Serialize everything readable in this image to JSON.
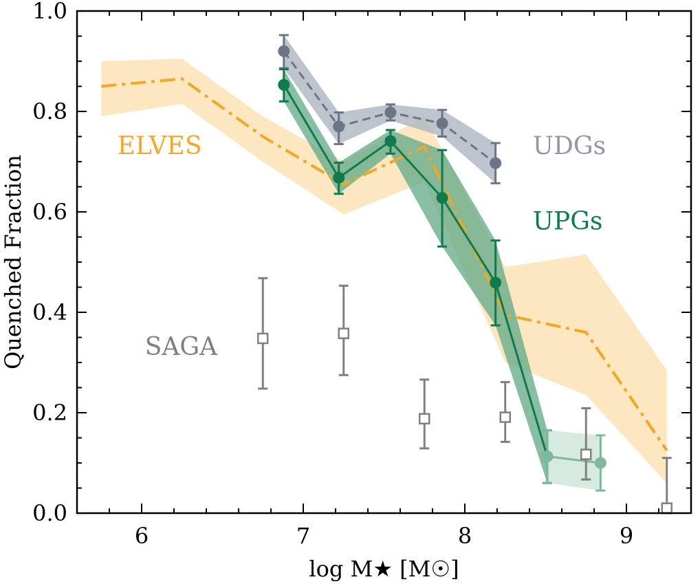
{
  "chart_data": {
    "type": "line",
    "xlabel": "log  M★ [M☉]",
    "ylabel": "Quenched Fraction",
    "xlim": [
      5.6,
      9.4
    ],
    "ylim": [
      0.0,
      1.0
    ],
    "xticks": [
      6,
      7,
      8,
      9
    ],
    "yticks": [
      0.0,
      0.2,
      0.4,
      0.6,
      0.8,
      1.0
    ],
    "xtick_labels": [
      "6",
      "7",
      "8",
      "9"
    ],
    "ytick_labels": [
      "0.0",
      "0.2",
      "0.4",
      "0.6",
      "0.8",
      "1.0"
    ],
    "grid": false,
    "annotations": [
      {
        "text": "ELVES",
        "color": "#f5a623"
      },
      {
        "text": "UDGs",
        "color": "#8f98a8"
      },
      {
        "text": "UPGs",
        "color": "#0f7a4e"
      },
      {
        "text": "SAGA",
        "color": "#7f7f7f"
      }
    ],
    "series": [
      {
        "name": "ELVES",
        "style": "dashdot-line-with-band",
        "color": "#f5a623",
        "band_color": "#fde6be",
        "x": [
          5.75,
          6.25,
          6.75,
          7.25,
          7.75,
          8.25,
          8.75,
          9.25
        ],
        "y": [
          0.85,
          0.865,
          0.75,
          0.655,
          0.73,
          0.395,
          0.36,
          0.125
        ],
        "band_low": [
          0.79,
          0.815,
          0.7,
          0.595,
          0.66,
          0.3,
          0.235,
          0.06
        ],
        "band_high": [
          0.9,
          0.905,
          0.79,
          0.7,
          0.79,
          0.49,
          0.515,
          0.285
        ]
      },
      {
        "name": "UDGs",
        "style": "dashed-line-markers-band",
        "color": "#6c7585",
        "band_color": "#aeb5c0",
        "x": [
          6.88,
          7.22,
          7.54,
          7.86,
          8.19
        ],
        "y": [
          0.92,
          0.77,
          0.798,
          0.776,
          0.697
        ],
        "err_low": [
          0.034,
          0.035,
          0.016,
          0.026,
          0.04
        ],
        "err_high": [
          0.032,
          0.028,
          0.016,
          0.027,
          0.04
        ]
      },
      {
        "name": "UPGs",
        "style": "solid-line-markers-band",
        "color": "#0f7a4e",
        "band_color": "#5fa886",
        "x": [
          6.88,
          7.22,
          7.54,
          7.86,
          8.19,
          8.51
        ],
        "y": [
          0.853,
          0.668,
          0.741,
          0.628,
          0.459,
          0.113
        ],
        "err_low": [
          0.033,
          0.032,
          0.025,
          0.097,
          0.085,
          0.053
        ],
        "err_high": [
          0.031,
          0.03,
          0.022,
          0.095,
          0.084,
          0.052
        ]
      },
      {
        "name": "UPGs (faded)",
        "style": "solid-line-markers-band",
        "color": "#7fb89c",
        "band_color": "#cde5d8",
        "x": [
          8.51,
          8.84
        ],
        "y": [
          0.113,
          0.1
        ],
        "err_low": [
          0.053,
          0.055
        ],
        "err_high": [
          0.052,
          0.055
        ]
      },
      {
        "name": "SAGA",
        "style": "open-squares-errorbars",
        "color": "#808080",
        "x": [
          6.75,
          7.25,
          7.75,
          8.25,
          8.75,
          9.25
        ],
        "y": [
          0.348,
          0.358,
          0.188,
          0.191,
          0.117,
          0.01
        ],
        "err_low": [
          0.1,
          0.083,
          0.059,
          0.049,
          0.05,
          0.01
        ],
        "err_high": [
          0.12,
          0.095,
          0.078,
          0.07,
          0.092,
          0.1
        ]
      }
    ]
  }
}
